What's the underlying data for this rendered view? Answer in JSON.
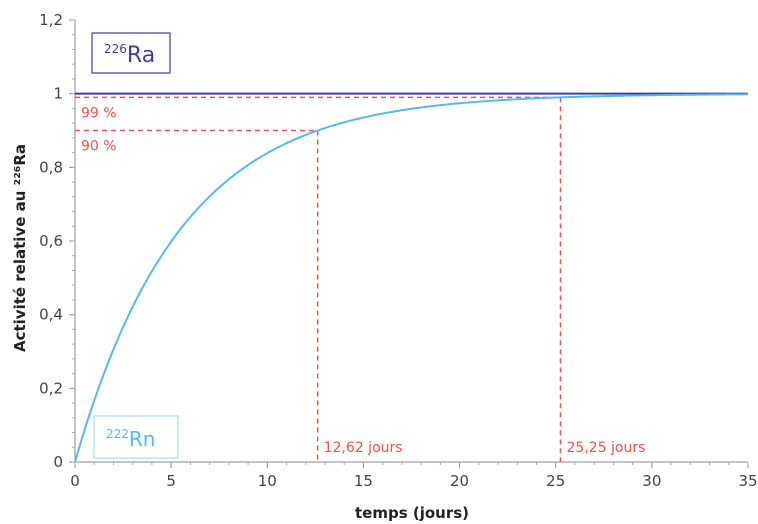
{
  "chart_data": {
    "type": "line",
    "xlabel": "temps (jours)",
    "ylabel": "Activité relative au ²²⁶Ra",
    "xlim": [
      0,
      35
    ],
    "ylim": [
      0,
      1.2
    ],
    "x_ticks": [
      "0",
      "5",
      "10",
      "15",
      "20",
      "25",
      "30",
      "35"
    ],
    "y_ticks": [
      "0",
      "0,2",
      "0,4",
      "0,6",
      "0,8",
      "1",
      "1,2"
    ],
    "grid": false,
    "series": [
      {
        "name": "²²⁶Ra",
        "name_sup": "226",
        "name_base": "Ra",
        "color": "#3c3ca8",
        "x": [
          0,
          35
        ],
        "y": [
          1,
          1
        ]
      },
      {
        "name": "²²²Rn",
        "name_sup": "222",
        "name_base": "Rn",
        "color": "#55b8f0",
        "half_life_days": 3.8,
        "x": [
          0,
          2,
          4,
          6,
          8,
          10,
          12.62,
          15,
          20,
          25.25,
          30,
          35
        ],
        "y": [
          0,
          0.306,
          0.518,
          0.666,
          0.768,
          0.839,
          0.9,
          0.935,
          0.974,
          0.99,
          0.996,
          0.998
        ]
      }
    ],
    "annotations": [
      {
        "label": "90 %",
        "y": 0.9,
        "x": 12.62,
        "x_label": "12,62 jours",
        "color": "#f05050"
      },
      {
        "label": "99 %",
        "y": 0.99,
        "x": 25.25,
        "x_label": "25,25 jours",
        "color": "#f05050"
      }
    ]
  }
}
